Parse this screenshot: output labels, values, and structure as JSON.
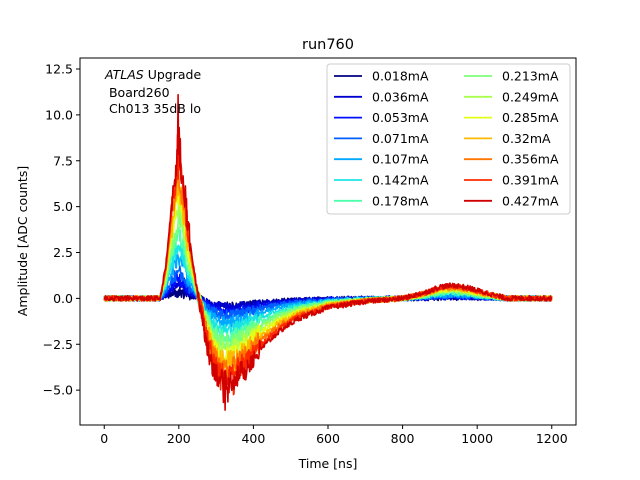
{
  "chart_data": {
    "type": "line",
    "title": "run760",
    "xlabel": "Time [ns]",
    "ylabel": "Amplitude [ADC counts]",
    "xlim": [
      -65,
      1265
    ],
    "ylim": [
      -6.9,
      13.1
    ],
    "xticks": [
      0,
      200,
      400,
      600,
      800,
      1000,
      1200
    ],
    "xtick_labels": [
      "0",
      "200",
      "400",
      "600",
      "800",
      "1000",
      "1200"
    ],
    "yticks": [
      -5.0,
      -2.5,
      0.0,
      2.5,
      5.0,
      7.5,
      10.0,
      12.5
    ],
    "ytick_labels": [
      "−5.0",
      "−2.5",
      "0.0",
      "2.5",
      "5.0",
      "7.5",
      "10.0",
      "12.5"
    ],
    "grid": false,
    "legend_position": "top-right",
    "legend_columns": 2,
    "annotation": {
      "italic_part": "ATLAS",
      "line1_rest": " Upgrade",
      "line2": " Board260",
      "line3": " Ch013 35dB lo"
    },
    "x_range_ns": [
      0,
      1200
    ],
    "pulse_shape_points": {
      "t": [
        0,
        150,
        165,
        180,
        195,
        200,
        215,
        230,
        245,
        260,
        275,
        290,
        305,
        320,
        340,
        360,
        380,
        400,
        430,
        470,
        520,
        600,
        700,
        800,
        860,
        900,
        940,
        980,
        1020,
        1080,
        1200
      ],
      "shape": [
        0,
        0,
        0.22,
        0.62,
        0.93,
        1.0,
        0.72,
        0.38,
        0.12,
        -0.08,
        -0.28,
        -0.42,
        -0.5,
        -0.54,
        -0.53,
        -0.49,
        -0.44,
        -0.38,
        -0.3,
        -0.21,
        -0.13,
        -0.06,
        -0.02,
        0,
        0.04,
        0.08,
        0.09,
        0.07,
        0.04,
        0,
        0
      ]
    },
    "series": [
      {
        "name": "0.018mA",
        "color": "#00007f",
        "peak": 0.35,
        "undershoot": 0.4
      },
      {
        "name": "0.036mA",
        "color": "#0000d0",
        "peak": 0.75,
        "undershoot": 0.45
      },
      {
        "name": "0.053mA",
        "color": "#0010ff",
        "peak": 1.1,
        "undershoot": 0.7
      },
      {
        "name": "0.071mA",
        "color": "#0060ff",
        "peak": 1.5,
        "undershoot": 0.9
      },
      {
        "name": "0.107mA",
        "color": "#00a8ff",
        "peak": 2.2,
        "undershoot": 1.3
      },
      {
        "name": "0.142mA",
        "color": "#1be5e2",
        "peak": 2.9,
        "undershoot": 1.7
      },
      {
        "name": "0.178mA",
        "color": "#4dffaa",
        "peak": 3.6,
        "undershoot": 2.1
      },
      {
        "name": "0.213mA",
        "color": "#7cff79",
        "peak": 4.3,
        "undershoot": 2.4
      },
      {
        "name": "0.249mA",
        "color": "#aaff4d",
        "peak": 5.0,
        "undershoot": 2.8
      },
      {
        "name": "0.285mA",
        "color": "#e2ff15",
        "peak": 5.6,
        "undershoot": 3.1
      },
      {
        "name": "0.32mA",
        "color": "#ffb900",
        "peak": 6.2,
        "undershoot": 3.4
      },
      {
        "name": "0.356mA",
        "color": "#ff7700",
        "peak": 6.8,
        "undershoot": 3.8
      },
      {
        "name": "0.391mA",
        "color": "#ff2900",
        "peak": 7.4,
        "undershoot": 4.2
      },
      {
        "name": "0.427mA",
        "color": "#d00000",
        "peak": 8.0,
        "undershoot": 4.6
      }
    ]
  }
}
